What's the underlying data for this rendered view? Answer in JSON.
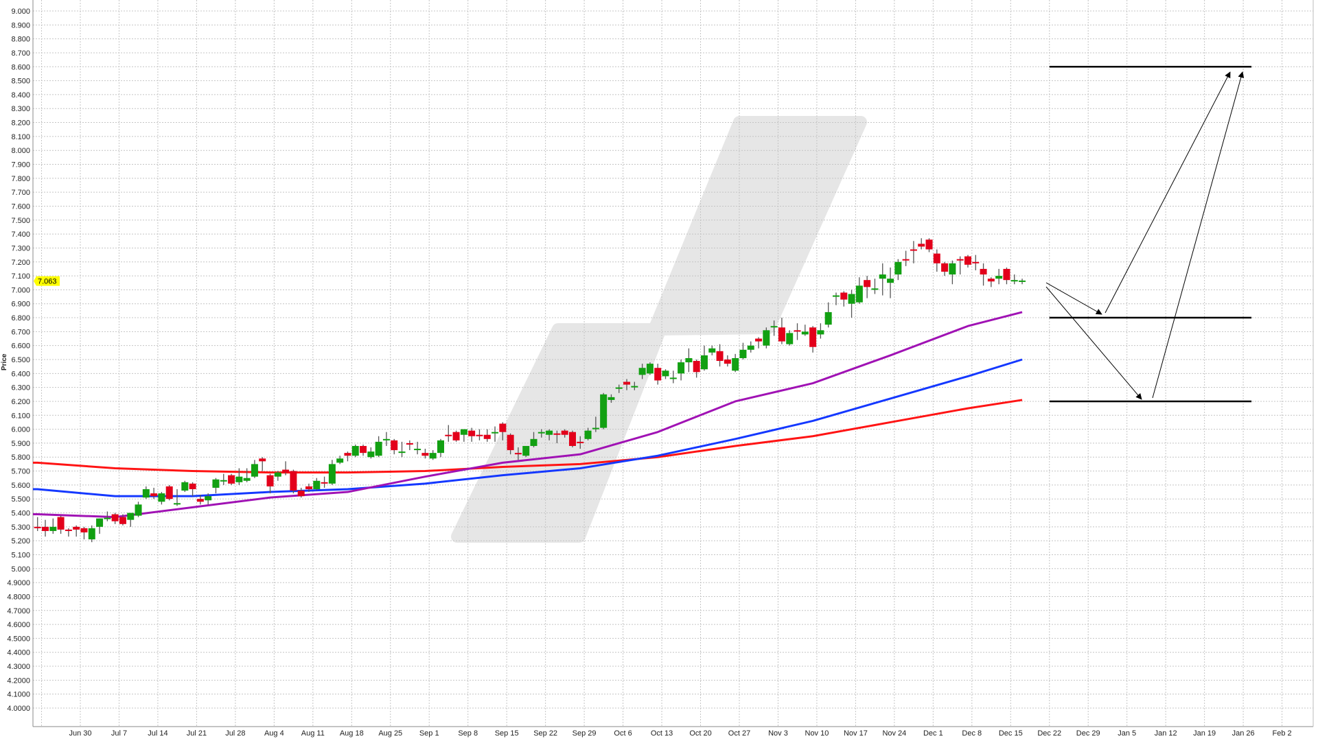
{
  "chart_data": {
    "type": "candlestick",
    "ylabel": "Price",
    "ylim": [
      4.0,
      9.0
    ],
    "grid": true,
    "colors": {
      "up": "#12a012",
      "down": "#e3001b",
      "ma_red": "#ff1414",
      "ma_blue": "#1438ff",
      "ma_purple": "#a012b4",
      "current_price_bg": "#ffff00",
      "watermark": "#e6e6e6"
    },
    "y_ticks": [
      "9.000",
      "8.900",
      "8.800",
      "8.700",
      "8.600",
      "8.500",
      "8.400",
      "8.300",
      "8.200",
      "8.100",
      "8.000",
      "7.900",
      "7.800",
      "7.700",
      "7.600",
      "7.500",
      "7.400",
      "7.300",
      "7.200",
      "7.100",
      "7.000",
      "6.900",
      "6.800",
      "6.700",
      "6.600",
      "6.500",
      "6.400",
      "6.300",
      "6.200",
      "6.100",
      "6.000",
      "5.900",
      "5.800",
      "5.700",
      "5.600",
      "5.500",
      "5.400",
      "5.300",
      "5.200",
      "5.100",
      "5.000",
      "4.9000",
      "4.8000",
      "4.7000",
      "4.6000",
      "4.5000",
      "4.4000",
      "4.3000",
      "4.2000",
      "4.1000",
      "4.0000"
    ],
    "x_ticks": [
      "Jun 30",
      "Jul 7",
      "Jul 14",
      "Jul 21",
      "Jul 28",
      "Aug 4",
      "Aug 11",
      "Aug 18",
      "Aug 25",
      "Sep 1",
      "Sep 8",
      "Sep 15",
      "Sep 22",
      "Sep 29",
      "Oct 6",
      "Oct 13",
      "Oct 20",
      "Oct 27",
      "Nov 3",
      "Nov 10",
      "Nov 17",
      "Nov 24",
      "Dec 1",
      "Dec 8",
      "Dec 15",
      "Dec 22",
      "Dec 29",
      "Jan 5",
      "Jan 12",
      "Jan 19",
      "Jan 26",
      "Feb 2"
    ],
    "current_price": "7.063",
    "candles_fields": [
      "date",
      "open",
      "high",
      "low",
      "close"
    ],
    "candles": [
      [
        "Jun 20",
        5.3,
        5.37,
        5.27,
        5.29
      ],
      [
        "Jun 23",
        5.3,
        5.35,
        5.23,
        5.27
      ],
      [
        "Jun 24",
        5.27,
        5.36,
        5.25,
        5.3
      ],
      [
        "Jun 25",
        5.37,
        5.38,
        5.25,
        5.28
      ],
      [
        "Jun 26",
        5.28,
        5.29,
        5.23,
        5.27
      ],
      [
        "Jun 27",
        5.3,
        5.31,
        5.23,
        5.28
      ],
      [
        "Jun 30",
        5.29,
        5.3,
        5.21,
        5.26
      ],
      [
        "Jul 1",
        5.21,
        5.31,
        5.19,
        5.29
      ],
      [
        "Jul 2",
        5.3,
        5.36,
        5.25,
        5.36
      ],
      [
        "Jul 3",
        5.36,
        5.41,
        5.34,
        5.36
      ],
      [
        "Jul 4",
        5.39,
        5.4,
        5.32,
        5.34
      ],
      [
        "Jul 7",
        5.37,
        5.39,
        5.31,
        5.32
      ],
      [
        "Jul 8",
        5.35,
        5.4,
        5.3,
        5.4
      ],
      [
        "Jul 9",
        5.38,
        5.48,
        5.37,
        5.46
      ],
      [
        "Jul 10",
        5.51,
        5.59,
        5.5,
        5.57
      ],
      [
        "Jul 11",
        5.54,
        5.58,
        5.5,
        5.52
      ],
      [
        "Jul 14",
        5.48,
        5.55,
        5.46,
        5.54
      ],
      [
        "Jul 15",
        5.59,
        5.6,
        5.49,
        5.5
      ],
      [
        "Jul 16",
        5.46,
        5.57,
        5.45,
        5.47
      ],
      [
        "Jul 17",
        5.56,
        5.63,
        5.55,
        5.62
      ],
      [
        "Jul 18",
        5.61,
        5.62,
        5.52,
        5.57
      ],
      [
        "Jul 21",
        5.5,
        5.53,
        5.46,
        5.48
      ],
      [
        "Jul 22",
        5.49,
        5.54,
        5.46,
        5.52
      ],
      [
        "Jul 23",
        5.58,
        5.65,
        5.54,
        5.64
      ],
      [
        "Jul 24",
        5.63,
        5.68,
        5.6,
        5.63
      ],
      [
        "Jul 25",
        5.67,
        5.68,
        5.6,
        5.61
      ],
      [
        "Jul 28",
        5.62,
        5.72,
        5.6,
        5.66
      ],
      [
        "Jul 29",
        5.63,
        5.72,
        5.62,
        5.65
      ],
      [
        "Jul 30",
        5.66,
        5.78,
        5.65,
        5.75
      ],
      [
        "Jul 31",
        5.79,
        5.8,
        5.7,
        5.77
      ],
      [
        "Aug 1",
        5.67,
        5.68,
        5.54,
        5.59
      ],
      [
        "Aug 4",
        5.66,
        5.7,
        5.63,
        5.69
      ],
      [
        "Aug 5",
        5.71,
        5.77,
        5.67,
        5.69
      ],
      [
        "Aug 6",
        5.7,
        5.71,
        5.54,
        5.56
      ],
      [
        "Aug 7",
        5.56,
        5.58,
        5.51,
        5.52
      ],
      [
        "Aug 8",
        5.59,
        5.61,
        5.55,
        5.57
      ],
      [
        "Aug 11",
        5.57,
        5.65,
        5.56,
        5.63
      ],
      [
        "Aug 12",
        5.62,
        5.66,
        5.58,
        5.61
      ],
      [
        "Aug 13",
        5.61,
        5.78,
        5.6,
        5.75
      ],
      [
        "Aug 14",
        5.76,
        5.81,
        5.75,
        5.79
      ],
      [
        "Aug 15",
        5.83,
        5.84,
        5.77,
        5.81
      ],
      [
        "Aug 18",
        5.81,
        5.89,
        5.8,
        5.88
      ],
      [
        "Aug 19",
        5.88,
        5.89,
        5.81,
        5.83
      ],
      [
        "Aug 20",
        5.8,
        5.87,
        5.79,
        5.84
      ],
      [
        "Aug 21",
        5.81,
        5.95,
        5.8,
        5.91
      ],
      [
        "Aug 22",
        5.92,
        5.98,
        5.88,
        5.93
      ],
      [
        "Aug 25",
        5.92,
        5.93,
        5.82,
        5.85
      ],
      [
        "Aug 26",
        5.83,
        5.91,
        5.8,
        5.84
      ],
      [
        "Aug 27",
        5.9,
        5.92,
        5.85,
        5.89
      ],
      [
        "Aug 28",
        5.85,
        5.91,
        5.82,
        5.86
      ],
      [
        "Aug 29",
        5.83,
        5.86,
        5.79,
        5.81
      ],
      [
        "Sep 1",
        5.79,
        5.85,
        5.78,
        5.83
      ],
      [
        "Sep 2",
        5.83,
        5.93,
        5.8,
        5.92
      ],
      [
        "Sep 3",
        5.96,
        6.03,
        5.91,
        5.95
      ],
      [
        "Sep 4",
        5.98,
        5.99,
        5.91,
        5.92
      ],
      [
        "Sep 5",
        5.96,
        6.0,
        5.91,
        6.0
      ],
      [
        "Sep 8",
        5.99,
        6.01,
        5.91,
        5.95
      ],
      [
        "Sep 9",
        5.96,
        6.0,
        5.92,
        5.95
      ],
      [
        "Sep 10",
        5.96,
        6.0,
        5.91,
        5.93
      ],
      [
        "Sep 11",
        5.97,
        6.02,
        5.91,
        5.98
      ],
      [
        "Sep 12",
        6.04,
        6.05,
        5.92,
        5.98
      ],
      [
        "Sep 15",
        5.96,
        5.97,
        5.82,
        5.85
      ],
      [
        "Sep 16",
        5.83,
        5.87,
        5.78,
        5.82
      ],
      [
        "Sep 17",
        5.81,
        5.88,
        5.8,
        5.88
      ],
      [
        "Sep 18",
        5.88,
        5.98,
        5.87,
        5.93
      ],
      [
        "Sep 19",
        5.97,
        6.0,
        5.94,
        5.98
      ],
      [
        "Sep 22",
        5.96,
        6.0,
        5.92,
        5.99
      ],
      [
        "Sep 23",
        5.97,
        5.99,
        5.9,
        5.96
      ],
      [
        "Sep 24",
        5.99,
        6.0,
        5.94,
        5.96
      ],
      [
        "Sep 25",
        5.98,
        5.99,
        5.87,
        5.88
      ],
      [
        "Sep 26",
        5.91,
        5.95,
        5.86,
        5.9
      ],
      [
        "Sep 29",
        5.93,
        6.01,
        5.92,
        5.99
      ],
      [
        "Sep 30",
        6.0,
        6.09,
        5.98,
        6.01
      ],
      [
        "Oct 1",
        6.01,
        6.26,
        6.0,
        6.25
      ],
      [
        "Oct 2",
        6.21,
        6.25,
        6.19,
        6.23
      ],
      [
        "Oct 3",
        6.29,
        6.32,
        6.26,
        6.3
      ],
      [
        "Oct 6",
        6.34,
        6.36,
        6.28,
        6.32
      ],
      [
        "Oct 7",
        6.3,
        6.34,
        6.28,
        6.31
      ],
      [
        "Oct 8",
        6.39,
        6.47,
        6.36,
        6.44
      ],
      [
        "Oct 9",
        6.4,
        6.48,
        6.39,
        6.47
      ],
      [
        "Oct 10",
        6.44,
        6.47,
        6.32,
        6.35
      ],
      [
        "Oct 13",
        6.38,
        6.43,
        6.36,
        6.42
      ],
      [
        "Oct 14",
        6.36,
        6.42,
        6.33,
        6.37
      ],
      [
        "Oct 15",
        6.4,
        6.5,
        6.35,
        6.48
      ],
      [
        "Oct 16",
        6.48,
        6.58,
        6.41,
        6.51
      ],
      [
        "Oct 17",
        6.49,
        6.5,
        6.37,
        6.41
      ],
      [
        "Oct 20",
        6.43,
        6.6,
        6.42,
        6.53
      ],
      [
        "Oct 21",
        6.55,
        6.6,
        6.53,
        6.58
      ],
      [
        "Oct 22",
        6.56,
        6.61,
        6.45,
        6.49
      ],
      [
        "Oct 23",
        6.5,
        6.53,
        6.45,
        6.47
      ],
      [
        "Oct 24",
        6.42,
        6.54,
        6.41,
        6.51
      ],
      [
        "Oct 27",
        6.51,
        6.62,
        6.5,
        6.57
      ],
      [
        "Oct 28",
        6.57,
        6.63,
        6.55,
        6.6
      ],
      [
        "Oct 29",
        6.65,
        6.66,
        6.58,
        6.63
      ],
      [
        "Oct 30",
        6.6,
        6.73,
        6.58,
        6.71
      ],
      [
        "Oct 31",
        6.73,
        6.78,
        6.67,
        6.74
      ],
      [
        "Nov 3",
        6.73,
        6.8,
        6.61,
        6.63
      ],
      [
        "Nov 4",
        6.61,
        6.71,
        6.6,
        6.69
      ],
      [
        "Nov 5",
        6.71,
        6.76,
        6.64,
        6.7
      ],
      [
        "Nov 6",
        6.68,
        6.75,
        6.67,
        6.7
      ],
      [
        "Nov 7",
        6.73,
        6.74,
        6.55,
        6.59
      ],
      [
        "Nov 10",
        6.68,
        6.76,
        6.65,
        6.71
      ],
      [
        "Nov 11",
        6.75,
        6.91,
        6.73,
        6.84
      ],
      [
        "Nov 12",
        6.95,
        6.98,
        6.89,
        6.96
      ],
      [
        "Nov 13",
        6.98,
        6.99,
        6.88,
        6.93
      ],
      [
        "Nov 14",
        6.9,
        7.0,
        6.8,
        6.97
      ],
      [
        "Nov 17",
        6.91,
        7.09,
        6.9,
        7.03
      ],
      [
        "Nov 18",
        7.07,
        7.1,
        6.94,
        7.02
      ],
      [
        "Nov 19",
        7.0,
        7.08,
        6.97,
        7.01
      ],
      [
        "Nov 20",
        7.08,
        7.19,
        6.96,
        7.11
      ],
      [
        "Nov 21",
        7.05,
        7.16,
        6.94,
        7.08
      ],
      [
        "Nov 24",
        7.11,
        7.22,
        7.07,
        7.2
      ],
      [
        "Nov 25",
        7.22,
        7.28,
        7.17,
        7.21
      ],
      [
        "Nov 26",
        7.29,
        7.35,
        7.19,
        7.28
      ],
      [
        "Nov 27",
        7.33,
        7.37,
        7.29,
        7.31
      ],
      [
        "Nov 28",
        7.36,
        7.37,
        7.27,
        7.29
      ],
      [
        "Dec 1",
        7.26,
        7.29,
        7.13,
        7.19
      ],
      [
        "Dec 2",
        7.19,
        7.2,
        7.1,
        7.13
      ],
      [
        "Dec 3",
        7.11,
        7.21,
        7.04,
        7.19
      ],
      [
        "Dec 4",
        7.22,
        7.24,
        7.11,
        7.21
      ],
      [
        "Dec 5",
        7.24,
        7.25,
        7.16,
        7.18
      ],
      [
        "Dec 8",
        7.2,
        7.25,
        7.14,
        7.19
      ],
      [
        "Dec 9",
        7.15,
        7.19,
        7.03,
        7.11
      ],
      [
        "Dec 10",
        7.08,
        7.09,
        7.02,
        7.06
      ],
      [
        "Dec 11",
        7.08,
        7.15,
        7.04,
        7.1
      ],
      [
        "Dec 12",
        7.15,
        7.16,
        7.04,
        7.07
      ],
      [
        "Dec 15",
        7.06,
        7.11,
        7.04,
        7.07
      ],
      [
        "Dec 16",
        7.06,
        7.08,
        7.04,
        7.063
      ]
    ],
    "moving_averages": [
      {
        "color": "#ff1414",
        "points": [
          [
            "Jun 20",
            5.76
          ],
          [
            "Jul 4",
            5.72
          ],
          [
            "Jul 18",
            5.7
          ],
          [
            "Aug 1",
            5.69
          ],
          [
            "Aug 15",
            5.69
          ],
          [
            "Aug 29",
            5.7
          ],
          [
            "Sep 12",
            5.73
          ],
          [
            "Sep 26",
            5.75
          ],
          [
            "Oct 10",
            5.8
          ],
          [
            "Oct 24",
            5.88
          ],
          [
            "Nov 7",
            5.95
          ],
          [
            "Nov 21",
            6.05
          ],
          [
            "Dec 5",
            6.15
          ],
          [
            "Dec 16",
            6.21
          ]
        ]
      },
      {
        "color": "#1438ff",
        "points": [
          [
            "Jun 20",
            5.57
          ],
          [
            "Jul 4",
            5.52
          ],
          [
            "Jul 18",
            5.52
          ],
          [
            "Aug 1",
            5.55
          ],
          [
            "Aug 15",
            5.57
          ],
          [
            "Aug 29",
            5.61
          ],
          [
            "Sep 12",
            5.67
          ],
          [
            "Sep 26",
            5.72
          ],
          [
            "Oct 10",
            5.81
          ],
          [
            "Oct 24",
            5.93
          ],
          [
            "Nov 7",
            6.06
          ],
          [
            "Nov 21",
            6.22
          ],
          [
            "Dec 5",
            6.38
          ],
          [
            "Dec 16",
            6.5
          ]
        ]
      },
      {
        "color": "#a012b4",
        "points": [
          [
            "Jun 20",
            5.39
          ],
          [
            "Jul 4",
            5.37
          ],
          [
            "Jul 18",
            5.44
          ],
          [
            "Aug 1",
            5.51
          ],
          [
            "Aug 15",
            5.55
          ],
          [
            "Aug 29",
            5.66
          ],
          [
            "Sep 12",
            5.76
          ],
          [
            "Sep 26",
            5.82
          ],
          [
            "Oct 10",
            5.98
          ],
          [
            "Oct 24",
            6.2
          ],
          [
            "Nov 7",
            6.33
          ],
          [
            "Nov 21",
            6.53
          ],
          [
            "Dec 5",
            6.74
          ],
          [
            "Dec 16",
            6.84
          ]
        ]
      }
    ],
    "projection_levels": {
      "from": "Dec 22",
      "to": "Jan 26",
      "values": [
        8.6,
        6.8,
        6.2
      ]
    }
  }
}
